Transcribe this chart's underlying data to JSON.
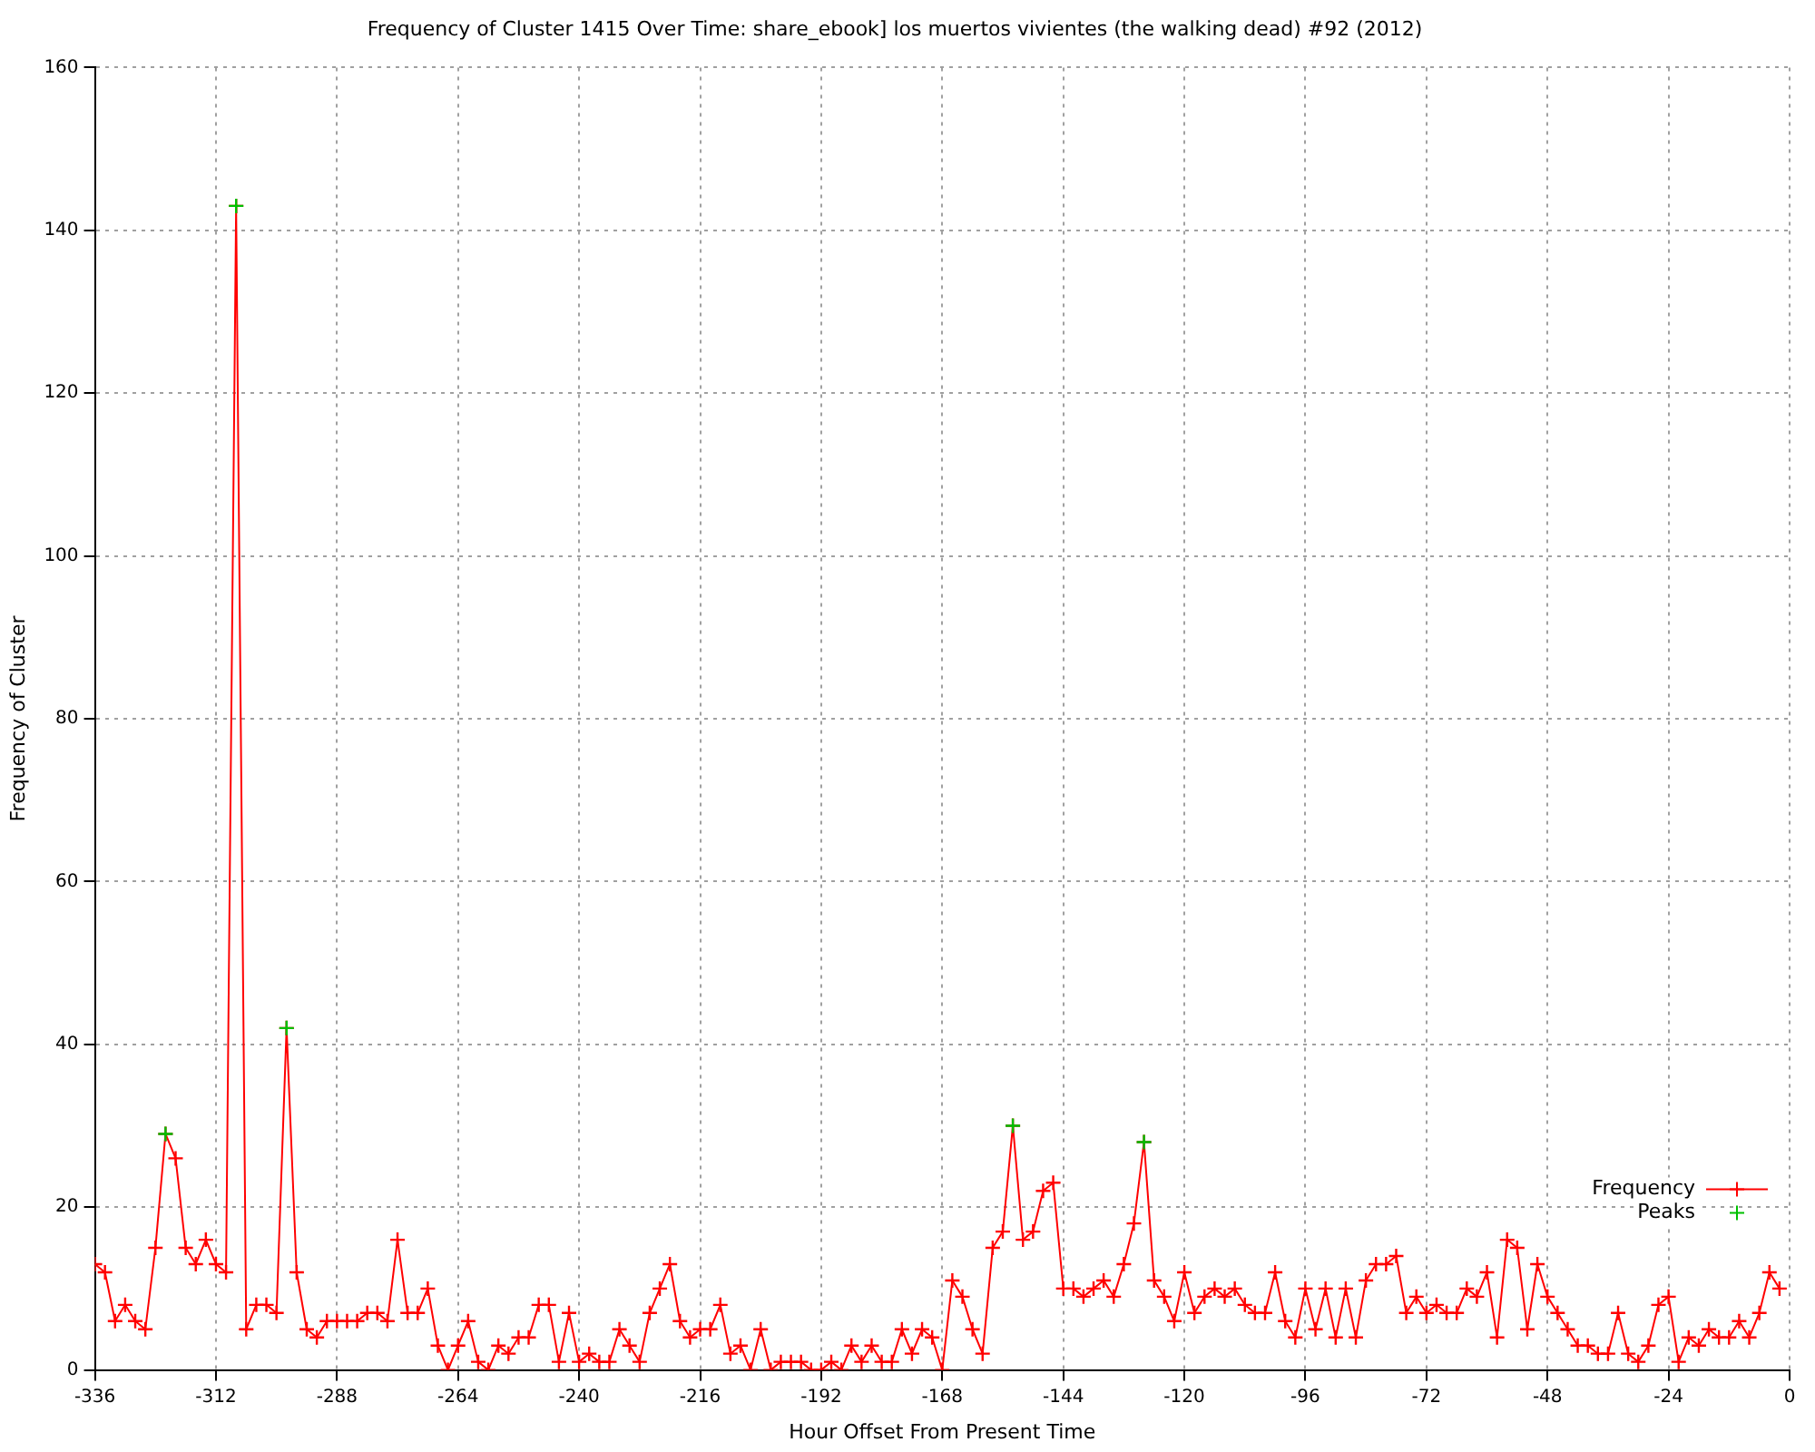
{
  "chart_data": {
    "type": "line",
    "title": "Frequency of Cluster 1415 Over Time: share_ebook] los muertos vivientes (the walking dead) #92 (2012)",
    "xlabel": "Hour Offset From Present Time",
    "ylabel": "Frequency of Cluster",
    "xlim": [
      -336,
      0
    ],
    "xticks": [
      -336,
      -312,
      -288,
      -264,
      -240,
      -216,
      -192,
      -168,
      -144,
      -120,
      -96,
      -72,
      -48,
      -24,
      0
    ],
    "ylim": [
      0,
      160
    ],
    "yticks": [
      0,
      20,
      40,
      60,
      80,
      100,
      120,
      140,
      160
    ],
    "grid": true,
    "legend": "bottom right",
    "line_style": "solid",
    "series": [
      {
        "name": "Frequency",
        "color": "#ff0000",
        "marker": "cross",
        "x": [
          -336,
          -334,
          -332,
          -330,
          -328,
          -326,
          -324,
          -322,
          -320,
          -318,
          -316,
          -314,
          -312,
          -310,
          -308,
          -306,
          -304,
          -302,
          -300,
          -298,
          -296,
          -294,
          -292,
          -290,
          -288,
          -286,
          -284,
          -282,
          -280,
          -278,
          -276,
          -274,
          -272,
          -270,
          -268,
          -266,
          -264,
          -262,
          -260,
          -258,
          -256,
          -254,
          -252,
          -250,
          -248,
          -246,
          -244,
          -242,
          -240,
          -238,
          -236,
          -234,
          -232,
          -230,
          -228,
          -226,
          -224,
          -222,
          -220,
          -218,
          -216,
          -214,
          -212,
          -210,
          -208,
          -206,
          -204,
          -202,
          -200,
          -198,
          -196,
          -194,
          -192,
          -190,
          -188,
          -186,
          -184,
          -182,
          -180,
          -178,
          -176,
          -174,
          -172,
          -170,
          -168,
          -166,
          -164,
          -162,
          -160,
          -158,
          -156,
          -154,
          -152,
          -150,
          -148,
          -146,
          -144,
          -142,
          -140,
          -138,
          -136,
          -134,
          -132,
          -130,
          -128,
          -126,
          -124,
          -122,
          -120,
          -118,
          -116,
          -114,
          -112,
          -110,
          -108,
          -106,
          -104,
          -102,
          -100,
          -98,
          -96,
          -94,
          -92,
          -90,
          -88,
          -86,
          -84,
          -82,
          -80,
          -78,
          -76,
          -74,
          -72,
          -70,
          -68,
          -66,
          -64,
          -62,
          -60,
          -58,
          -56,
          -54,
          -52,
          -50,
          -48,
          -46,
          -44,
          -42,
          -40,
          -38,
          -36,
          -34,
          -32,
          -30,
          -28,
          -26,
          -24,
          -22,
          -20,
          -18,
          -16,
          -14,
          -12,
          -10,
          -8,
          -6,
          -4,
          -2
        ],
        "values": [
          13,
          12,
          6,
          8,
          6,
          5,
          15,
          29,
          26,
          15,
          13,
          16,
          13,
          12,
          143,
          5,
          8,
          8,
          7,
          42,
          12,
          5,
          4,
          6,
          6,
          6,
          6,
          7,
          7,
          6,
          16,
          7,
          7,
          10,
          3,
          0,
          3,
          6,
          1,
          0,
          3,
          2,
          4,
          4,
          8,
          8,
          1,
          7,
          1,
          2,
          1,
          1,
          5,
          3,
          1,
          7,
          10,
          13,
          6,
          4,
          5,
          5,
          8,
          2,
          3,
          0,
          5,
          0,
          1,
          1,
          1,
          0,
          0,
          1,
          0,
          3,
          1,
          3,
          1,
          1,
          5,
          2,
          5,
          4,
          0,
          11,
          9,
          5,
          2,
          15,
          17,
          30,
          16,
          17,
          22,
          23,
          10,
          10,
          9,
          10,
          11,
          9,
          13,
          18,
          28,
          11,
          9,
          6,
          12,
          7,
          9,
          10,
          9,
          10,
          8,
          7,
          7,
          12,
          6,
          4,
          10,
          5,
          10,
          4,
          10,
          4,
          11,
          13,
          13,
          14,
          7,
          9,
          7,
          8,
          7,
          7,
          10,
          9,
          12,
          4,
          16,
          15,
          5,
          13,
          9,
          7,
          5,
          3,
          3,
          2,
          2,
          7,
          2,
          1,
          3,
          8,
          9,
          1,
          4,
          3,
          5,
          4,
          4,
          6,
          4,
          7,
          12,
          10
        ]
      },
      {
        "name": "Peaks",
        "type": "scatter",
        "color": "#00c000",
        "marker": "cross",
        "x": [
          -322,
          -308,
          -298,
          -154,
          -128
        ],
        "values": [
          29,
          143,
          42,
          30,
          28
        ]
      }
    ]
  }
}
